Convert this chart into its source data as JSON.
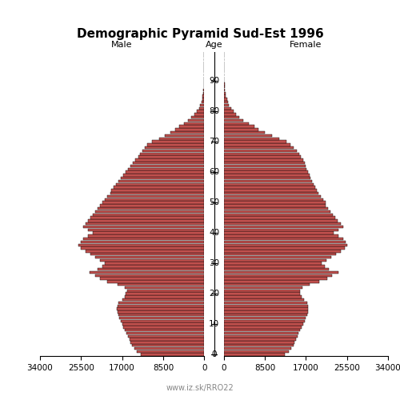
{
  "title": "Demographic Pyramid Sud-Est 1996",
  "label_male": "Male",
  "label_female": "Female",
  "label_age": "Age",
  "footer": "www.iz.sk/RRO22",
  "xlim": 34000,
  "bar_color": "#c0504d",
  "bar_edge_color": "#000000",
  "bar_linewidth": 0.3,
  "bar_height": 0.9,
  "ages": [
    0,
    1,
    2,
    3,
    4,
    5,
    6,
    7,
    8,
    9,
    10,
    11,
    12,
    13,
    14,
    15,
    16,
    17,
    18,
    19,
    20,
    21,
    22,
    23,
    24,
    25,
    26,
    27,
    28,
    29,
    30,
    31,
    32,
    33,
    34,
    35,
    36,
    37,
    38,
    39,
    40,
    41,
    42,
    43,
    44,
    45,
    46,
    47,
    48,
    49,
    50,
    51,
    52,
    53,
    54,
    55,
    56,
    57,
    58,
    59,
    60,
    61,
    62,
    63,
    64,
    65,
    66,
    67,
    68,
    69,
    70,
    71,
    72,
    73,
    74,
    75,
    76,
    77,
    78,
    79,
    80,
    81,
    82,
    83,
    84,
    85,
    86,
    87,
    88,
    89,
    90,
    91,
    92,
    93,
    94,
    95,
    96,
    97,
    98,
    99
  ],
  "male": [
    13200,
    14000,
    14500,
    15000,
    15200,
    15500,
    15800,
    16100,
    16400,
    16700,
    17000,
    17300,
    17600,
    17800,
    18000,
    18100,
    18000,
    17800,
    17000,
    16500,
    16200,
    16000,
    16500,
    18000,
    20000,
    21500,
    22500,
    23800,
    22000,
    21000,
    20500,
    21500,
    22500,
    23500,
    24500,
    25500,
    26000,
    25500,
    25000,
    24000,
    23000,
    24000,
    25000,
    24500,
    24000,
    23500,
    23000,
    22500,
    22000,
    21500,
    21000,
    20500,
    20000,
    19500,
    19200,
    18700,
    18200,
    17700,
    17200,
    16700,
    16200,
    15700,
    15200,
    14700,
    14200,
    13700,
    13300,
    12800,
    12300,
    11800,
    10800,
    9300,
    8100,
    7000,
    6000,
    5100,
    4100,
    3300,
    2600,
    2000,
    1500,
    1100,
    800,
    600,
    430,
    300,
    220,
    150,
    110,
    75,
    50,
    35,
    25,
    16,
    11,
    7,
    4,
    3,
    2,
    1
  ],
  "female": [
    12600,
    13400,
    13900,
    14400,
    14600,
    14900,
    15200,
    15500,
    15800,
    16100,
    16400,
    16700,
    17000,
    17200,
    17400,
    17500,
    17400,
    17200,
    16600,
    16100,
    15800,
    15700,
    16200,
    17800,
    19800,
    21400,
    22400,
    23700,
    21800,
    20900,
    20200,
    21200,
    22200,
    23200,
    24200,
    25100,
    25600,
    25200,
    24700,
    23800,
    22800,
    23700,
    24700,
    24200,
    23600,
    23000,
    22500,
    22000,
    21600,
    21100,
    21000,
    20500,
    20100,
    19600,
    19300,
    18900,
    18600,
    18300,
    18000,
    17700,
    17400,
    17100,
    16900,
    16700,
    16400,
    16000,
    15600,
    15100,
    14500,
    13800,
    13000,
    11500,
    10000,
    8500,
    7200,
    6300,
    5100,
    4000,
    3200,
    2500,
    1950,
    1500,
    1100,
    820,
    620,
    440,
    320,
    230,
    170,
    120,
    85,
    60,
    43,
    30,
    21,
    15,
    10,
    6,
    4,
    2
  ],
  "ytick_positions": [
    0,
    10,
    20,
    30,
    40,
    50,
    60,
    70,
    80,
    90
  ],
  "xticks_left": [
    34000,
    25500,
    17000,
    8500,
    0
  ],
  "xtick_labels_left": [
    "34000",
    "25500",
    "17000",
    "8500",
    "0"
  ],
  "xticks_right": [
    0,
    8500,
    17000,
    25500,
    34000
  ],
  "xtick_labels_right": [
    "0",
    "8500",
    "17000",
    "25500",
    "34000"
  ],
  "background_color": "#ffffff",
  "title_fontsize": 11,
  "label_fontsize": 8,
  "tick_fontsize": 7.5,
  "footer_fontsize": 7,
  "footer_color": "#888888"
}
